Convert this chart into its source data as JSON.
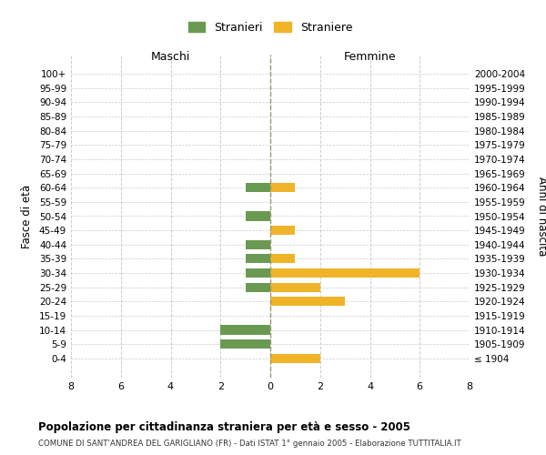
{
  "age_groups": [
    "100+",
    "95-99",
    "90-94",
    "85-89",
    "80-84",
    "75-79",
    "70-74",
    "65-69",
    "60-64",
    "55-59",
    "50-54",
    "45-49",
    "40-44",
    "35-39",
    "30-34",
    "25-29",
    "20-24",
    "15-19",
    "10-14",
    "5-9",
    "0-4"
  ],
  "birth_years": [
    "≤ 1904",
    "1905-1909",
    "1910-1914",
    "1915-1919",
    "1920-1924",
    "1925-1929",
    "1930-1934",
    "1935-1939",
    "1940-1944",
    "1945-1949",
    "1950-1954",
    "1955-1959",
    "1960-1964",
    "1965-1969",
    "1970-1974",
    "1975-1979",
    "1980-1984",
    "1985-1989",
    "1990-1994",
    "1995-1999",
    "2000-2004"
  ],
  "maschi": [
    0,
    0,
    0,
    0,
    0,
    0,
    0,
    0,
    1,
    0,
    1,
    0,
    1,
    1,
    1,
    1,
    0,
    0,
    2,
    2,
    0
  ],
  "femmine": [
    0,
    0,
    0,
    0,
    0,
    0,
    0,
    0,
    1,
    0,
    0,
    1,
    0,
    1,
    6,
    2,
    3,
    0,
    0,
    0,
    2
  ],
  "maschi_color": "#6a9a52",
  "femmine_color": "#f0b429",
  "background_color": "#ffffff",
  "grid_color": "#cccccc",
  "title": "Popolazione per cittadinanza straniera per età e sesso - 2005",
  "subtitle": "COMUNE DI SANT'ANDREA DEL GARIGLIANO (FR) - Dati ISTAT 1° gennaio 2005 - Elaborazione TUTTITALIA.IT",
  "xlabel_left": "Maschi",
  "xlabel_right": "Femmine",
  "ylabel_left": "Fasce di età",
  "ylabel_right": "Anni di nascita",
  "legend_maschi": "Stranieri",
  "legend_femmine": "Straniere",
  "xlim": 8,
  "bar_height": 0.65
}
